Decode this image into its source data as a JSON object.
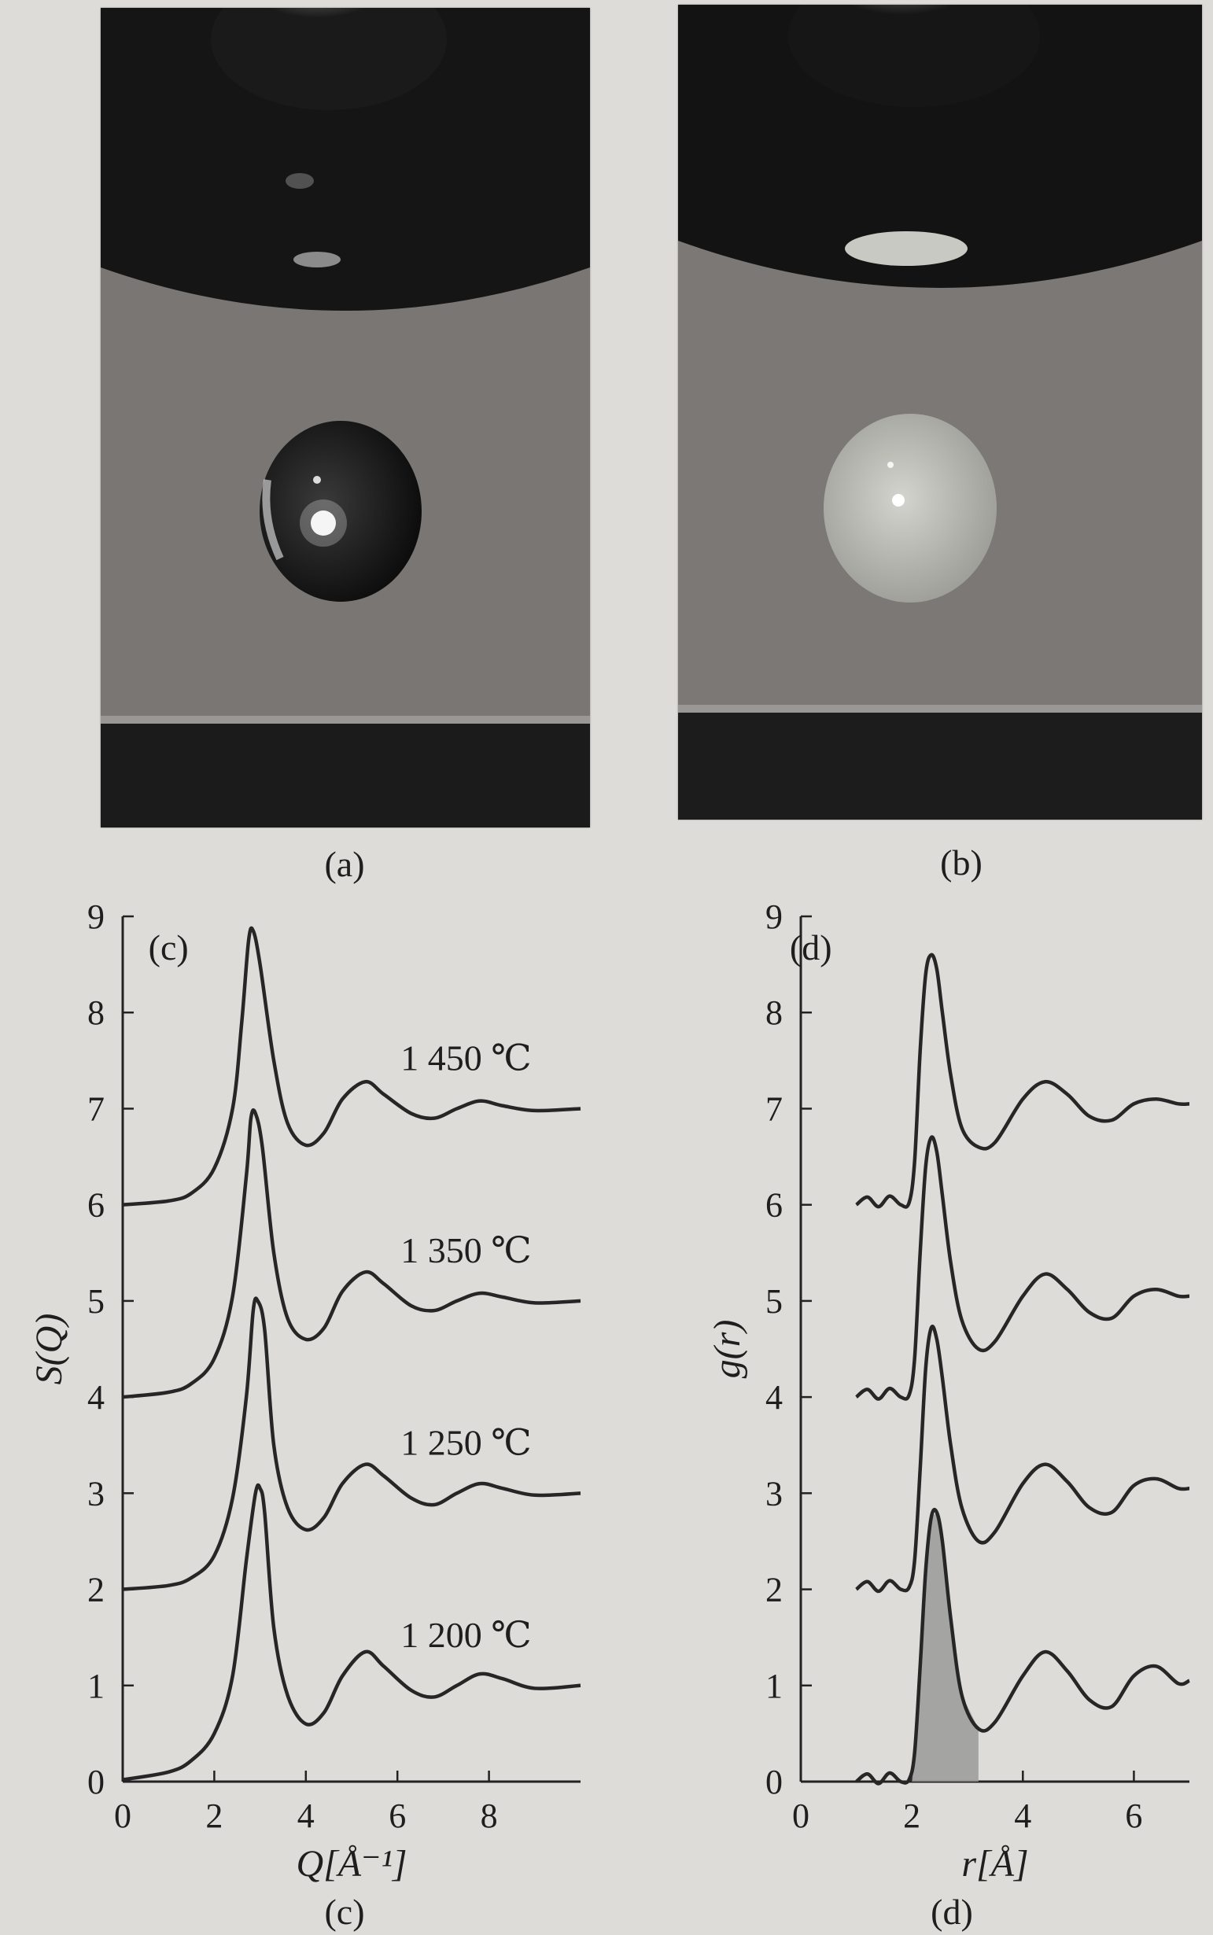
{
  "photos": [
    {
      "label": "(a)",
      "drop_color": "#1a1a1a"
    },
    {
      "label": "(b)",
      "drop_color": "#b4b4ae"
    }
  ],
  "captions": {
    "a": "(a)",
    "b": "(b)",
    "c": "(c)",
    "d": "(d)"
  },
  "chart_data": [
    {
      "type": "line",
      "panel_label": "(c)",
      "xlabel": "Q[Å⁻¹]",
      "ylabel": "S(Q)",
      "xlim": [
        0,
        10
      ],
      "ylim": [
        0,
        9
      ],
      "xticks": [
        0,
        2,
        4,
        6,
        8
      ],
      "yticks": [
        0,
        1,
        2,
        3,
        4,
        5,
        6,
        7,
        8,
        9
      ],
      "grid": false,
      "series": [
        {
          "name": "1 200 ℃",
          "offset": 0,
          "x": [
            0,
            1,
            1.5,
            2,
            2.4,
            2.7,
            2.9,
            3.0,
            3.1,
            3.3,
            3.6,
            4.0,
            4.4,
            4.8,
            5.3,
            5.7,
            6.3,
            6.8,
            7.3,
            7.8,
            8.3,
            9.0,
            10
          ],
          "y": [
            0.02,
            0.1,
            0.22,
            0.5,
            1.1,
            2.3,
            3.0,
            3.05,
            2.8,
            1.6,
            0.9,
            0.6,
            0.72,
            1.1,
            1.35,
            1.2,
            0.95,
            0.88,
            1.0,
            1.12,
            1.07,
            0.97,
            1.0
          ]
        },
        {
          "name": "1 250 ℃",
          "offset": 2,
          "x": [
            0,
            1,
            1.5,
            2,
            2.4,
            2.7,
            2.85,
            2.95,
            3.1,
            3.3,
            3.6,
            4.0,
            4.4,
            4.8,
            5.3,
            5.7,
            6.3,
            6.8,
            7.3,
            7.8,
            8.3,
            9.0,
            10
          ],
          "y": [
            0.0,
            0.04,
            0.12,
            0.35,
            0.95,
            2.0,
            2.9,
            3.0,
            2.7,
            1.5,
            0.85,
            0.62,
            0.75,
            1.1,
            1.3,
            1.18,
            0.95,
            0.88,
            1.0,
            1.1,
            1.05,
            0.98,
            1.0
          ]
        },
        {
          "name": "1 350 ℃",
          "offset": 4,
          "x": [
            0,
            1,
            1.5,
            2,
            2.4,
            2.7,
            2.8,
            2.9,
            3.05,
            3.3,
            3.6,
            4.0,
            4.4,
            4.8,
            5.3,
            5.7,
            6.3,
            6.8,
            7.3,
            7.8,
            8.3,
            9.0,
            10
          ],
          "y": [
            0.0,
            0.05,
            0.14,
            0.4,
            1.05,
            2.3,
            2.9,
            2.95,
            2.6,
            1.5,
            0.82,
            0.6,
            0.72,
            1.1,
            1.3,
            1.18,
            0.95,
            0.9,
            1.0,
            1.08,
            1.04,
            0.98,
            1.0
          ]
        },
        {
          "name": "1 450 ℃",
          "offset": 6,
          "x": [
            0,
            1,
            1.5,
            2,
            2.4,
            2.6,
            2.75,
            2.85,
            3.0,
            3.3,
            3.6,
            4.0,
            4.4,
            4.8,
            5.3,
            5.7,
            6.3,
            6.8,
            7.3,
            7.8,
            8.3,
            9.0,
            10
          ],
          "y": [
            0.0,
            0.04,
            0.12,
            0.38,
            1.0,
            1.9,
            2.75,
            2.85,
            2.5,
            1.5,
            0.85,
            0.62,
            0.75,
            1.1,
            1.28,
            1.15,
            0.95,
            0.9,
            1.0,
            1.08,
            1.03,
            0.98,
            1.0
          ]
        }
      ],
      "series_labels": [
        "1 450 ℃",
        "1 350 ℃",
        "1 250 ℃",
        "1 200 ℃"
      ]
    },
    {
      "type": "line",
      "panel_label": "(d)",
      "xlabel": "r[Å]",
      "ylabel": "g(r)",
      "xlim": [
        0,
        7
      ],
      "ylim": [
        0,
        9
      ],
      "xticks": [
        0,
        2,
        4,
        6
      ],
      "yticks": [
        0,
        1,
        2,
        3,
        4,
        5,
        6,
        7,
        8,
        9
      ],
      "grid": false,
      "shaded_region": {
        "series": 0,
        "x_from": 2.0,
        "x_to": 3.2,
        "color": "#9a9a9a"
      },
      "series": [
        {
          "offset": 0,
          "x": [
            1.0,
            1.2,
            1.4,
            1.6,
            1.8,
            1.95,
            2.05,
            2.15,
            2.25,
            2.35,
            2.45,
            2.55,
            2.7,
            2.9,
            3.2,
            3.5,
            4.0,
            4.4,
            4.8,
            5.2,
            5.6,
            6.0,
            6.4,
            6.8,
            7.0
          ],
          "y": [
            0.0,
            0.08,
            -0.02,
            0.09,
            0.0,
            0.02,
            0.3,
            1.2,
            2.2,
            2.75,
            2.8,
            2.5,
            1.7,
            0.9,
            0.55,
            0.62,
            1.1,
            1.35,
            1.15,
            0.85,
            0.78,
            1.1,
            1.2,
            1.02,
            1.05
          ]
        },
        {
          "offset": 2,
          "x": [
            1.0,
            1.2,
            1.4,
            1.6,
            1.8,
            1.95,
            2.05,
            2.15,
            2.25,
            2.35,
            2.45,
            2.55,
            2.7,
            2.9,
            3.2,
            3.5,
            4.0,
            4.4,
            4.8,
            5.2,
            5.6,
            6.0,
            6.4,
            6.8,
            7.0
          ],
          "y": [
            0.0,
            0.08,
            -0.02,
            0.09,
            0.0,
            0.02,
            0.3,
            1.25,
            2.3,
            2.72,
            2.6,
            2.2,
            1.5,
            0.85,
            0.5,
            0.6,
            1.1,
            1.3,
            1.12,
            0.85,
            0.8,
            1.08,
            1.15,
            1.05,
            1.05
          ]
        },
        {
          "offset": 4,
          "x": [
            1.0,
            1.2,
            1.4,
            1.6,
            1.8,
            1.95,
            2.05,
            2.15,
            2.25,
            2.35,
            2.45,
            2.55,
            2.7,
            2.9,
            3.2,
            3.5,
            4.0,
            4.4,
            4.8,
            5.2,
            5.6,
            6.0,
            6.4,
            6.8,
            7.0
          ],
          "y": [
            0.0,
            0.08,
            -0.02,
            0.09,
            0.0,
            0.02,
            0.4,
            1.5,
            2.4,
            2.7,
            2.55,
            2.1,
            1.4,
            0.8,
            0.5,
            0.58,
            1.05,
            1.28,
            1.12,
            0.88,
            0.82,
            1.05,
            1.12,
            1.05,
            1.05
          ]
        },
        {
          "offset": 6,
          "x": [
            1.0,
            1.2,
            1.4,
            1.6,
            1.8,
            1.95,
            2.05,
            2.15,
            2.25,
            2.35,
            2.45,
            2.55,
            2.7,
            2.9,
            3.2,
            3.5,
            4.0,
            4.4,
            4.8,
            5.2,
            5.6,
            6.0,
            6.4,
            6.8,
            7.0
          ],
          "y": [
            0.0,
            0.08,
            -0.02,
            0.09,
            0.0,
            0.02,
            0.45,
            1.6,
            2.4,
            2.6,
            2.45,
            2.0,
            1.35,
            0.8,
            0.6,
            0.65,
            1.1,
            1.28,
            1.15,
            0.92,
            0.88,
            1.05,
            1.1,
            1.05,
            1.05
          ]
        }
      ]
    }
  ]
}
